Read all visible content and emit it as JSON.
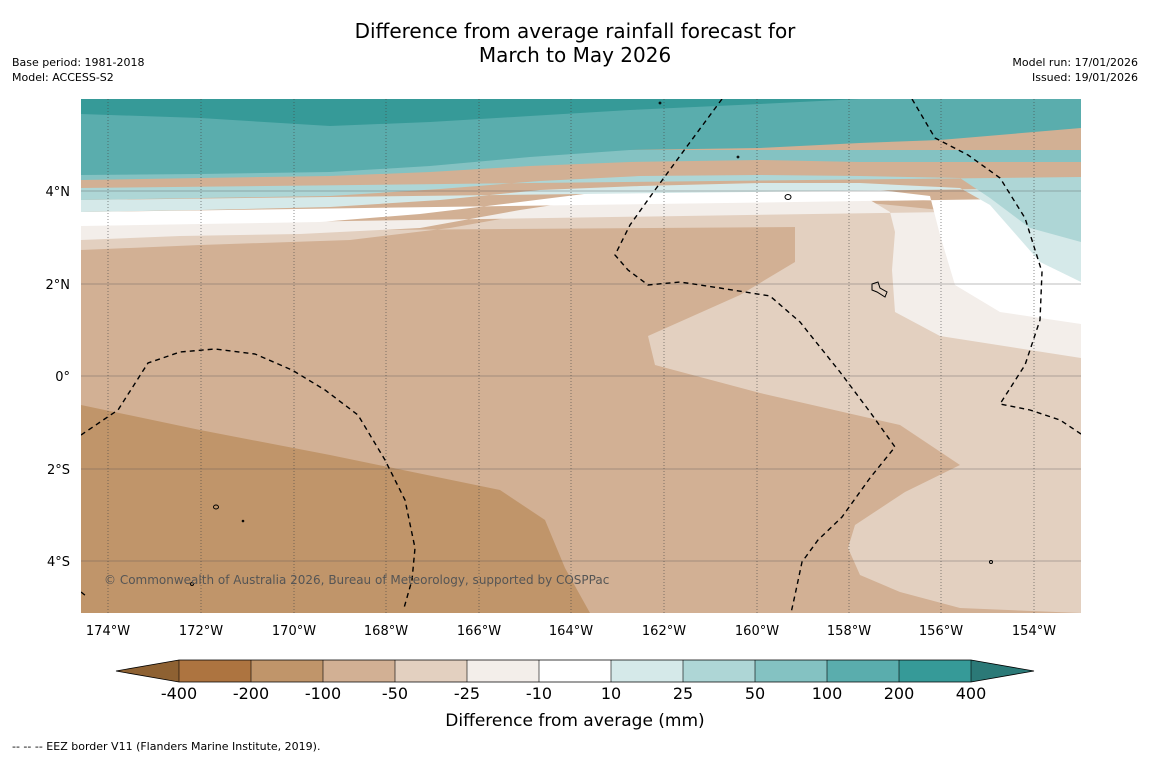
{
  "header": {
    "title_line1": "Difference from average rainfall forecast for",
    "title_line2": "March to May 2026",
    "base_period": "Base period: 1981-2018",
    "model": "Model: ACCESS-S2",
    "model_run": "Model run: 17/01/2026",
    "issued": "Issued: 19/01/2026"
  },
  "map": {
    "lat_labels": [
      "4°N",
      "2°N",
      "0°",
      "2°S",
      "4°S"
    ],
    "lon_labels": [
      "174°W",
      "172°W",
      "170°W",
      "168°W",
      "166°W",
      "164°W",
      "162°W",
      "160°W",
      "158°W",
      "156°W",
      "154°W"
    ],
    "copyright": "© Commonwealth of Australia 2026, Bureau of Meteorology, supported by COSPPac"
  },
  "legend": {
    "ticks": [
      "-400",
      "-200",
      "-100",
      "-50",
      "-25",
      "-10",
      "10",
      "25",
      "50",
      "100",
      "200",
      "400"
    ],
    "colors": {
      "below_400": "#8e6132",
      "n400_n200": "#ad7440",
      "n200_n100": "#c0956a",
      "n100_n50": "#d2b094",
      "n50_n25": "#e3d0c0",
      "n25_n10": "#f3eeea",
      "n10_10": "#ffffff",
      "p10_25": "#d5e9e9",
      "p25_50": "#aed6d6",
      "p50_100": "#84c2c2",
      "p100_200": "#5aadad",
      "p200_400": "#369a98",
      "above_400": "#2b7977"
    },
    "label": "Difference from average (mm)"
  },
  "footnote": "--  --  -- EEZ border V11 (Flanders Marine Institute, 2019)."
}
